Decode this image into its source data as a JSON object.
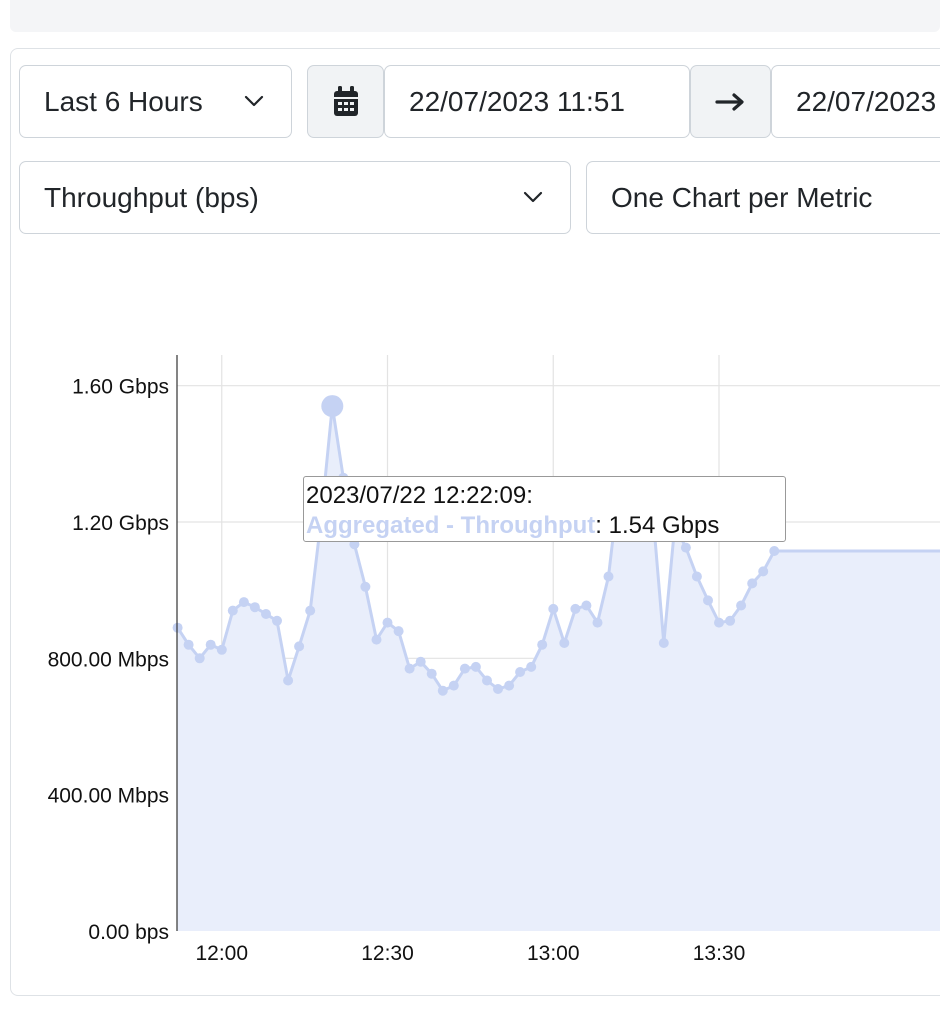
{
  "controls": {
    "range_label": "Last 6 Hours",
    "start_datetime": "22/07/2023 11:51",
    "end_datetime": "22/07/2023",
    "metric_label": "Throughput (bps)",
    "layout_label": "One Chart per Metric"
  },
  "icons": {
    "calendar": "calendar-icon",
    "arrow": "arrow-right-icon",
    "caret": "chevron-down-icon"
  },
  "colors": {
    "series_line": "#c5d2f3",
    "series_fill": "#e9eefb",
    "grid": "#e3e3e3"
  },
  "tooltip": {
    "timestamp": "2023/07/22 12:22:09:",
    "series_name": "Aggregated - Throughput",
    "value": ": 1.54 Gbps"
  },
  "chart_data": {
    "type": "area",
    "ytick_labels": [
      "0.00 bps",
      "400.00 Mbps",
      "800.00 Mbps",
      "1.20 Gbps",
      "1.60 Gbps"
    ],
    "ytick_values": [
      0,
      400,
      800,
      1200,
      1600
    ],
    "xtick_labels": [
      "12:00",
      "12:30",
      "13:00",
      "13:30"
    ],
    "xtick_values": [
      720,
      750,
      780,
      810
    ],
    "xlim": [
      711.9,
      850
    ],
    "ylim": [
      0,
      1690
    ],
    "grid": true,
    "series": [
      {
        "name": "Aggregated - Throughput",
        "x": [
          712,
          714,
          716,
          718,
          720,
          722,
          724,
          726,
          728,
          730,
          732,
          734,
          736,
          738,
          740,
          742,
          744,
          746,
          748,
          750,
          752,
          754,
          756,
          758,
          760,
          762,
          764,
          766,
          768,
          770,
          772,
          774,
          776,
          778,
          780,
          782,
          784,
          786,
          788,
          790,
          792,
          794,
          796,
          798,
          800,
          802,
          804,
          806,
          808,
          810,
          812,
          814,
          816,
          818,
          820
        ],
        "values": [
          890,
          840,
          800,
          840,
          825,
          940,
          965,
          950,
          930,
          910,
          735,
          835,
          940,
          1210,
          1540,
          1330,
          1135,
          1010,
          855,
          905,
          880,
          770,
          790,
          755,
          705,
          720,
          770,
          775,
          735,
          710,
          720,
          760,
          775,
          840,
          945,
          845,
          945,
          955,
          905,
          1040,
          1320,
          1280,
          1170,
          1230,
          845,
          1190,
          1125,
          1040,
          970,
          905,
          910,
          955,
          1020,
          1055,
          1115
        ]
      }
    ],
    "highlight_index": 14
  }
}
